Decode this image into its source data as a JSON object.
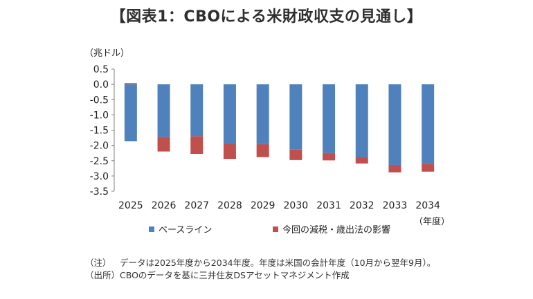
{
  "title": "【図表1：CBOによる米財政収支の見通し】",
  "unit_label": "（兆ドル）",
  "x_unit_label": "（年度）",
  "notes": [
    {
      "tag": "（注）",
      "text": "データは2025年度から2034年度。年度は米国の会計年度（10月から翌年9月）。"
    },
    {
      "tag": "（出所）",
      "text": "CBOのデータを基に三井住友DSアセットマネジメント作成"
    }
  ],
  "chart_data": {
    "type": "bar",
    "stacked": true,
    "categories": [
      "2025",
      "2026",
      "2027",
      "2028",
      "2029",
      "2030",
      "2031",
      "2032",
      "2033",
      "2034"
    ],
    "series": [
      {
        "name": "ベースライン",
        "color": "#4f81bd",
        "values": [
          -1.86,
          -1.72,
          -1.7,
          -1.92,
          -1.96,
          -2.14,
          -2.25,
          -2.38,
          -2.64,
          -2.6
        ]
      },
      {
        "name": "今回の減税・歳出法の影響",
        "color": "#c0504d",
        "values": [
          0.04,
          -0.48,
          -0.58,
          -0.52,
          -0.42,
          -0.34,
          -0.24,
          -0.21,
          -0.24,
          -0.26
        ]
      }
    ],
    "yticks": [
      "0.5",
      "0.0",
      "-0.5",
      "-1.0",
      "-1.5",
      "-2.0",
      "-2.5",
      "-3.0",
      "-3.5"
    ],
    "ylim": [
      -3.5,
      0.5
    ],
    "grid": false,
    "legend": "bottom"
  }
}
